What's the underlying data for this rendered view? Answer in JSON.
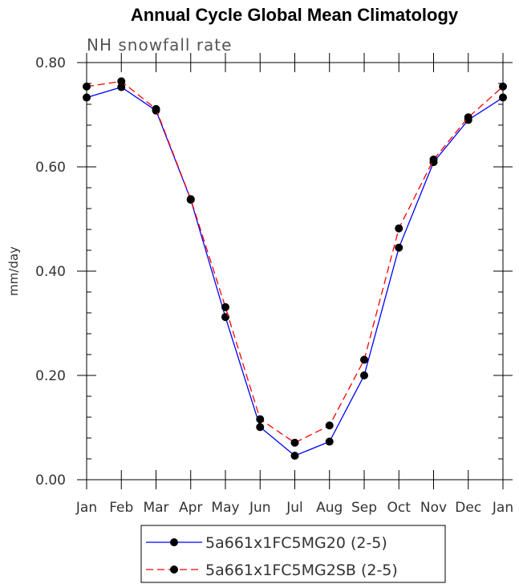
{
  "chart_data": {
    "type": "line",
    "title": "Annual Cycle Global Mean Climatology",
    "subtitle": "NH snowfall rate",
    "xlabel": "",
    "ylabel": "mm/day",
    "categories": [
      "Jan",
      "Feb",
      "Mar",
      "Apr",
      "May",
      "Jun",
      "Jul",
      "Aug",
      "Sep",
      "Oct",
      "Nov",
      "Dec",
      "Jan"
    ],
    "ylim": [
      0,
      0.8
    ],
    "yticks": [
      0.0,
      0.2,
      0.4,
      0.6,
      0.8
    ],
    "ytick_labels": [
      "0.00",
      "0.20",
      "0.40",
      "0.60",
      "0.80"
    ],
    "minor_tick_step": 0.04,
    "series": [
      {
        "name": "5a661x1FC5MG20 (2-5)",
        "color": "#0000ff",
        "dash": "solid",
        "marker": "#000000",
        "values": [
          0.733,
          0.753,
          0.708,
          0.537,
          0.312,
          0.101,
          0.046,
          0.073,
          0.2,
          0.445,
          0.609,
          0.69,
          0.733
        ]
      },
      {
        "name": "5a661x1FC5MG2SB (2-5)",
        "color": "#ff0000",
        "dash": "dashed",
        "marker": "#000000",
        "values": [
          0.754,
          0.764,
          0.711,
          0.538,
          0.331,
          0.116,
          0.071,
          0.104,
          0.23,
          0.482,
          0.614,
          0.695,
          0.754
        ]
      }
    ],
    "grid": false,
    "legend_position": "bottom"
  }
}
